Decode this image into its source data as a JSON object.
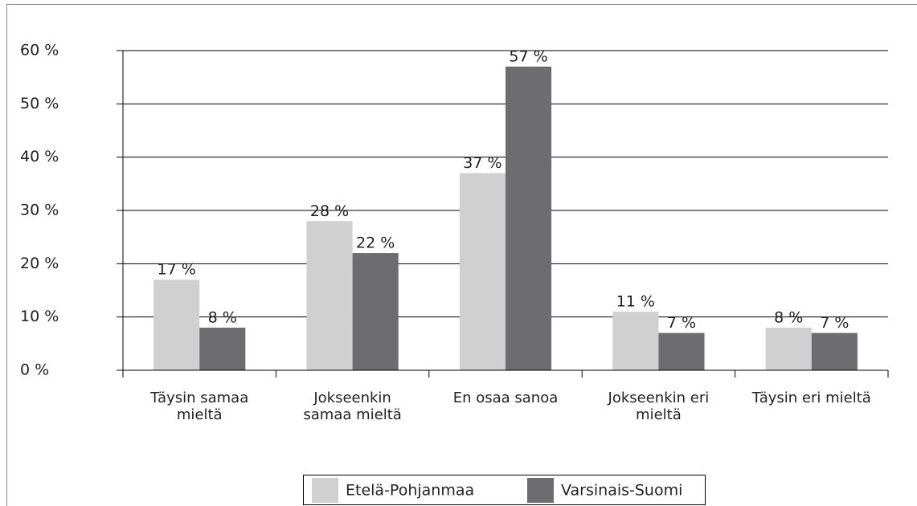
{
  "chart_data": {
    "type": "bar",
    "categories": [
      "Täysin samaa mieltä",
      "Jokseenkin samaa mieltä",
      "En osaa sanoa",
      "Jokseenkin eri mieltä",
      "Täysin eri mieltä"
    ],
    "series": [
      {
        "name": "Etelä-Pohjanmaa",
        "color": "#d0d0d0",
        "values": [
          17,
          28,
          37,
          11,
          8
        ],
        "value_labels": [
          "17 %",
          "28 %",
          "37 %",
          "11 %",
          "8 %"
        ]
      },
      {
        "name": "Varsinais-Suomi",
        "color": "#6d6d6f",
        "values": [
          8,
          22,
          57,
          7,
          7
        ],
        "value_labels": [
          "8 %",
          "22 %",
          "57 %",
          "7 %",
          "7 %"
        ]
      }
    ],
    "ylim": [
      0,
      60
    ],
    "yticks": [
      {
        "value": 0,
        "label": "0 %"
      },
      {
        "value": 10,
        "label": "10 %"
      },
      {
        "value": 20,
        "label": "20 %"
      },
      {
        "value": 30,
        "label": "30 %"
      },
      {
        "value": 40,
        "label": "40 %"
      },
      {
        "value": 50,
        "label": "50 %"
      },
      {
        "value": 60,
        "label": "60 %"
      }
    ],
    "grid": true,
    "legend": "bottom"
  }
}
